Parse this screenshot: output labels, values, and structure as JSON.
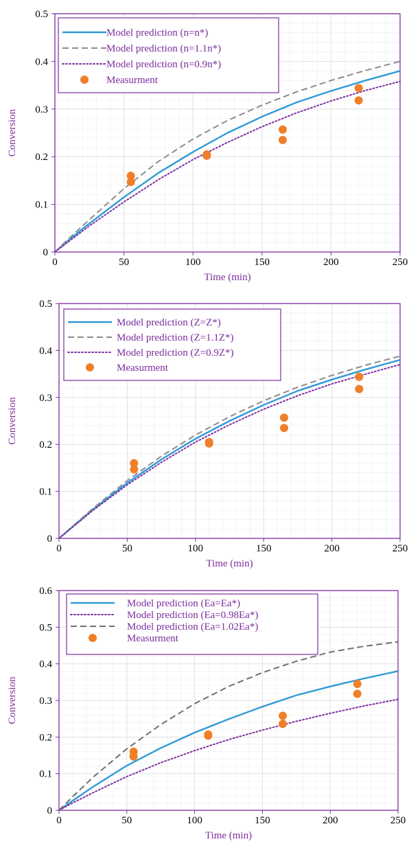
{
  "chart_data": [
    {
      "type": "line",
      "xlabel": "Time (min)",
      "ylabel": "Conversion",
      "xlim": [
        0,
        250
      ],
      "ylim": [
        0,
        0.5
      ],
      "xticks": [
        0,
        50,
        100,
        150,
        200,
        250
      ],
      "xtick_labels": [
        "0",
        "50",
        "100",
        "150",
        "200",
        "250"
      ],
      "yticks": [
        0,
        0.1,
        0.2,
        0.3,
        0.4,
        0.5
      ],
      "ytick_labels": [
        "0",
        "0.1",
        "0.2",
        "0.3",
        "0.4",
        "0.5"
      ],
      "grid": true,
      "legend_position": "top-left",
      "series": [
        {
          "name": "Model prediction (n=n*)",
          "style": "solid",
          "color": "#2f9ad6",
          "x": [
            0,
            10,
            25,
            50,
            75,
            100,
            125,
            150,
            175,
            200,
            225,
            250
          ],
          "y": [
            0,
            0.025,
            0.06,
            0.115,
            0.166,
            0.21,
            0.25,
            0.284,
            0.314,
            0.338,
            0.36,
            0.38
          ]
        },
        {
          "name": "Model prediction (n=1.1n*)",
          "style": "dashed",
          "color": "#8c8c8c",
          "x": [
            0,
            10,
            25,
            50,
            75,
            100,
            125,
            150,
            175,
            200,
            225,
            250
          ],
          "y": [
            0,
            0.028,
            0.068,
            0.133,
            0.19,
            0.237,
            0.276,
            0.308,
            0.336,
            0.36,
            0.381,
            0.4
          ]
        },
        {
          "name": "Model prediction (n=0.9n*)",
          "style": "dotted",
          "color": "#7d2fa3",
          "x": [
            0,
            10,
            25,
            50,
            75,
            100,
            125,
            150,
            175,
            200,
            225,
            250
          ],
          "y": [
            0,
            0.022,
            0.055,
            0.105,
            0.152,
            0.194,
            0.23,
            0.263,
            0.292,
            0.317,
            0.339,
            0.358
          ]
        }
      ],
      "points": {
        "name": "Measurment",
        "color": "#f07f2a",
        "x": [
          55,
          55,
          110,
          110,
          165,
          165,
          220,
          220
        ],
        "y": [
          0.16,
          0.147,
          0.205,
          0.202,
          0.257,
          0.235,
          0.344,
          0.318
        ]
      }
    },
    {
      "type": "line",
      "xlabel": "Time (min)",
      "ylabel": "Conversion",
      "xlim": [
        0,
        250
      ],
      "ylim": [
        0,
        0.5
      ],
      "xticks": [
        0,
        50,
        100,
        150,
        200,
        250
      ],
      "xtick_labels": [
        "0",
        "50",
        "100",
        "150",
        "200",
        "250"
      ],
      "yticks": [
        0,
        0.1,
        0.2,
        0.3,
        0.4,
        0.5
      ],
      "ytick_labels": [
        "0",
        "0.1",
        "0.2",
        "0.3",
        "0.4",
        "0.5"
      ],
      "grid": true,
      "legend_position": "top-left",
      "series": [
        {
          "name": "Model prediction (Z=Z*)",
          "style": "solid",
          "color": "#2f9ad6",
          "x": [
            0,
            10,
            25,
            50,
            75,
            100,
            125,
            150,
            175,
            200,
            225,
            250
          ],
          "y": [
            0,
            0.025,
            0.062,
            0.118,
            0.168,
            0.212,
            0.25,
            0.284,
            0.314,
            0.338,
            0.36,
            0.38
          ]
        },
        {
          "name": "Model prediction (Z=1.1Z*)",
          "style": "dashed",
          "color": "#8c8c8c",
          "x": [
            0,
            10,
            25,
            50,
            75,
            100,
            125,
            150,
            175,
            200,
            225,
            250
          ],
          "y": [
            0,
            0.026,
            0.064,
            0.123,
            0.175,
            0.22,
            0.259,
            0.293,
            0.322,
            0.347,
            0.369,
            0.388
          ]
        },
        {
          "name": "Model prediction (Z=0.9Z*)",
          "style": "dotted",
          "color": "#7d2fa3",
          "x": [
            0,
            10,
            25,
            50,
            75,
            100,
            125,
            150,
            175,
            200,
            225,
            250
          ],
          "y": [
            0,
            0.024,
            0.06,
            0.114,
            0.162,
            0.205,
            0.242,
            0.275,
            0.304,
            0.329,
            0.35,
            0.37
          ]
        }
      ],
      "points": {
        "name": "Measurment",
        "color": "#f07f2a",
        "x": [
          55,
          55,
          110,
          110,
          165,
          165,
          220,
          220
        ],
        "y": [
          0.16,
          0.147,
          0.205,
          0.202,
          0.257,
          0.235,
          0.344,
          0.318
        ]
      }
    },
    {
      "type": "line",
      "xlabel": "Time (min)",
      "ylabel": "Conversion",
      "xlim": [
        0,
        250
      ],
      "ylim": [
        0,
        0.6
      ],
      "xticks": [
        0,
        50,
        100,
        150,
        200,
        250
      ],
      "xtick_labels": [
        "0",
        "50",
        "100",
        "150",
        "200",
        "250"
      ],
      "yticks": [
        0,
        0.1,
        0.2,
        0.3,
        0.4,
        0.5,
        0.6
      ],
      "ytick_labels": [
        "0",
        "0.1",
        "0.2",
        "0.3",
        "0.4",
        "0.5",
        "0.6"
      ],
      "grid": true,
      "legend_position": "top-left",
      "series": [
        {
          "name": "Model prediction (Ea=Ea*)",
          "style": "solid",
          "color": "#2f9ad6",
          "x": [
            0,
            10,
            25,
            50,
            75,
            100,
            125,
            150,
            175,
            200,
            225,
            250
          ],
          "y": [
            0,
            0.026,
            0.064,
            0.122,
            0.17,
            0.212,
            0.249,
            0.283,
            0.314,
            0.338,
            0.36,
            0.38
          ]
        },
        {
          "name": "Model prediction (Ea=0.98Ea*)",
          "style": "dotted",
          "color": "#7d2fa3",
          "x": [
            0,
            10,
            25,
            50,
            75,
            100,
            125,
            150,
            175,
            200,
            225,
            250
          ],
          "y": [
            0,
            0.02,
            0.048,
            0.092,
            0.13,
            0.163,
            0.193,
            0.219,
            0.243,
            0.265,
            0.285,
            0.303
          ]
        },
        {
          "name": "Model prediction (Ea=1.02Ea*)",
          "style": "dashed",
          "color": "#6f6f6f",
          "x": [
            0,
            10,
            25,
            50,
            75,
            100,
            125,
            150,
            175,
            200,
            225,
            250
          ],
          "y": [
            0,
            0.037,
            0.09,
            0.168,
            0.234,
            0.291,
            0.338,
            0.376,
            0.407,
            0.432,
            0.448,
            0.46
          ]
        }
      ],
      "points": {
        "name": "Measurment",
        "color": "#f07f2a",
        "x": [
          55,
          55,
          110,
          110,
          165,
          165,
          220,
          220
        ],
        "y": [
          0.16,
          0.147,
          0.207,
          0.204,
          0.258,
          0.236,
          0.345,
          0.318
        ]
      }
    }
  ],
  "colors": {
    "axis": "#7b2c9e",
    "grid": "#e0e0e0",
    "minor_grid": "#efefef",
    "text": "#000000"
  }
}
